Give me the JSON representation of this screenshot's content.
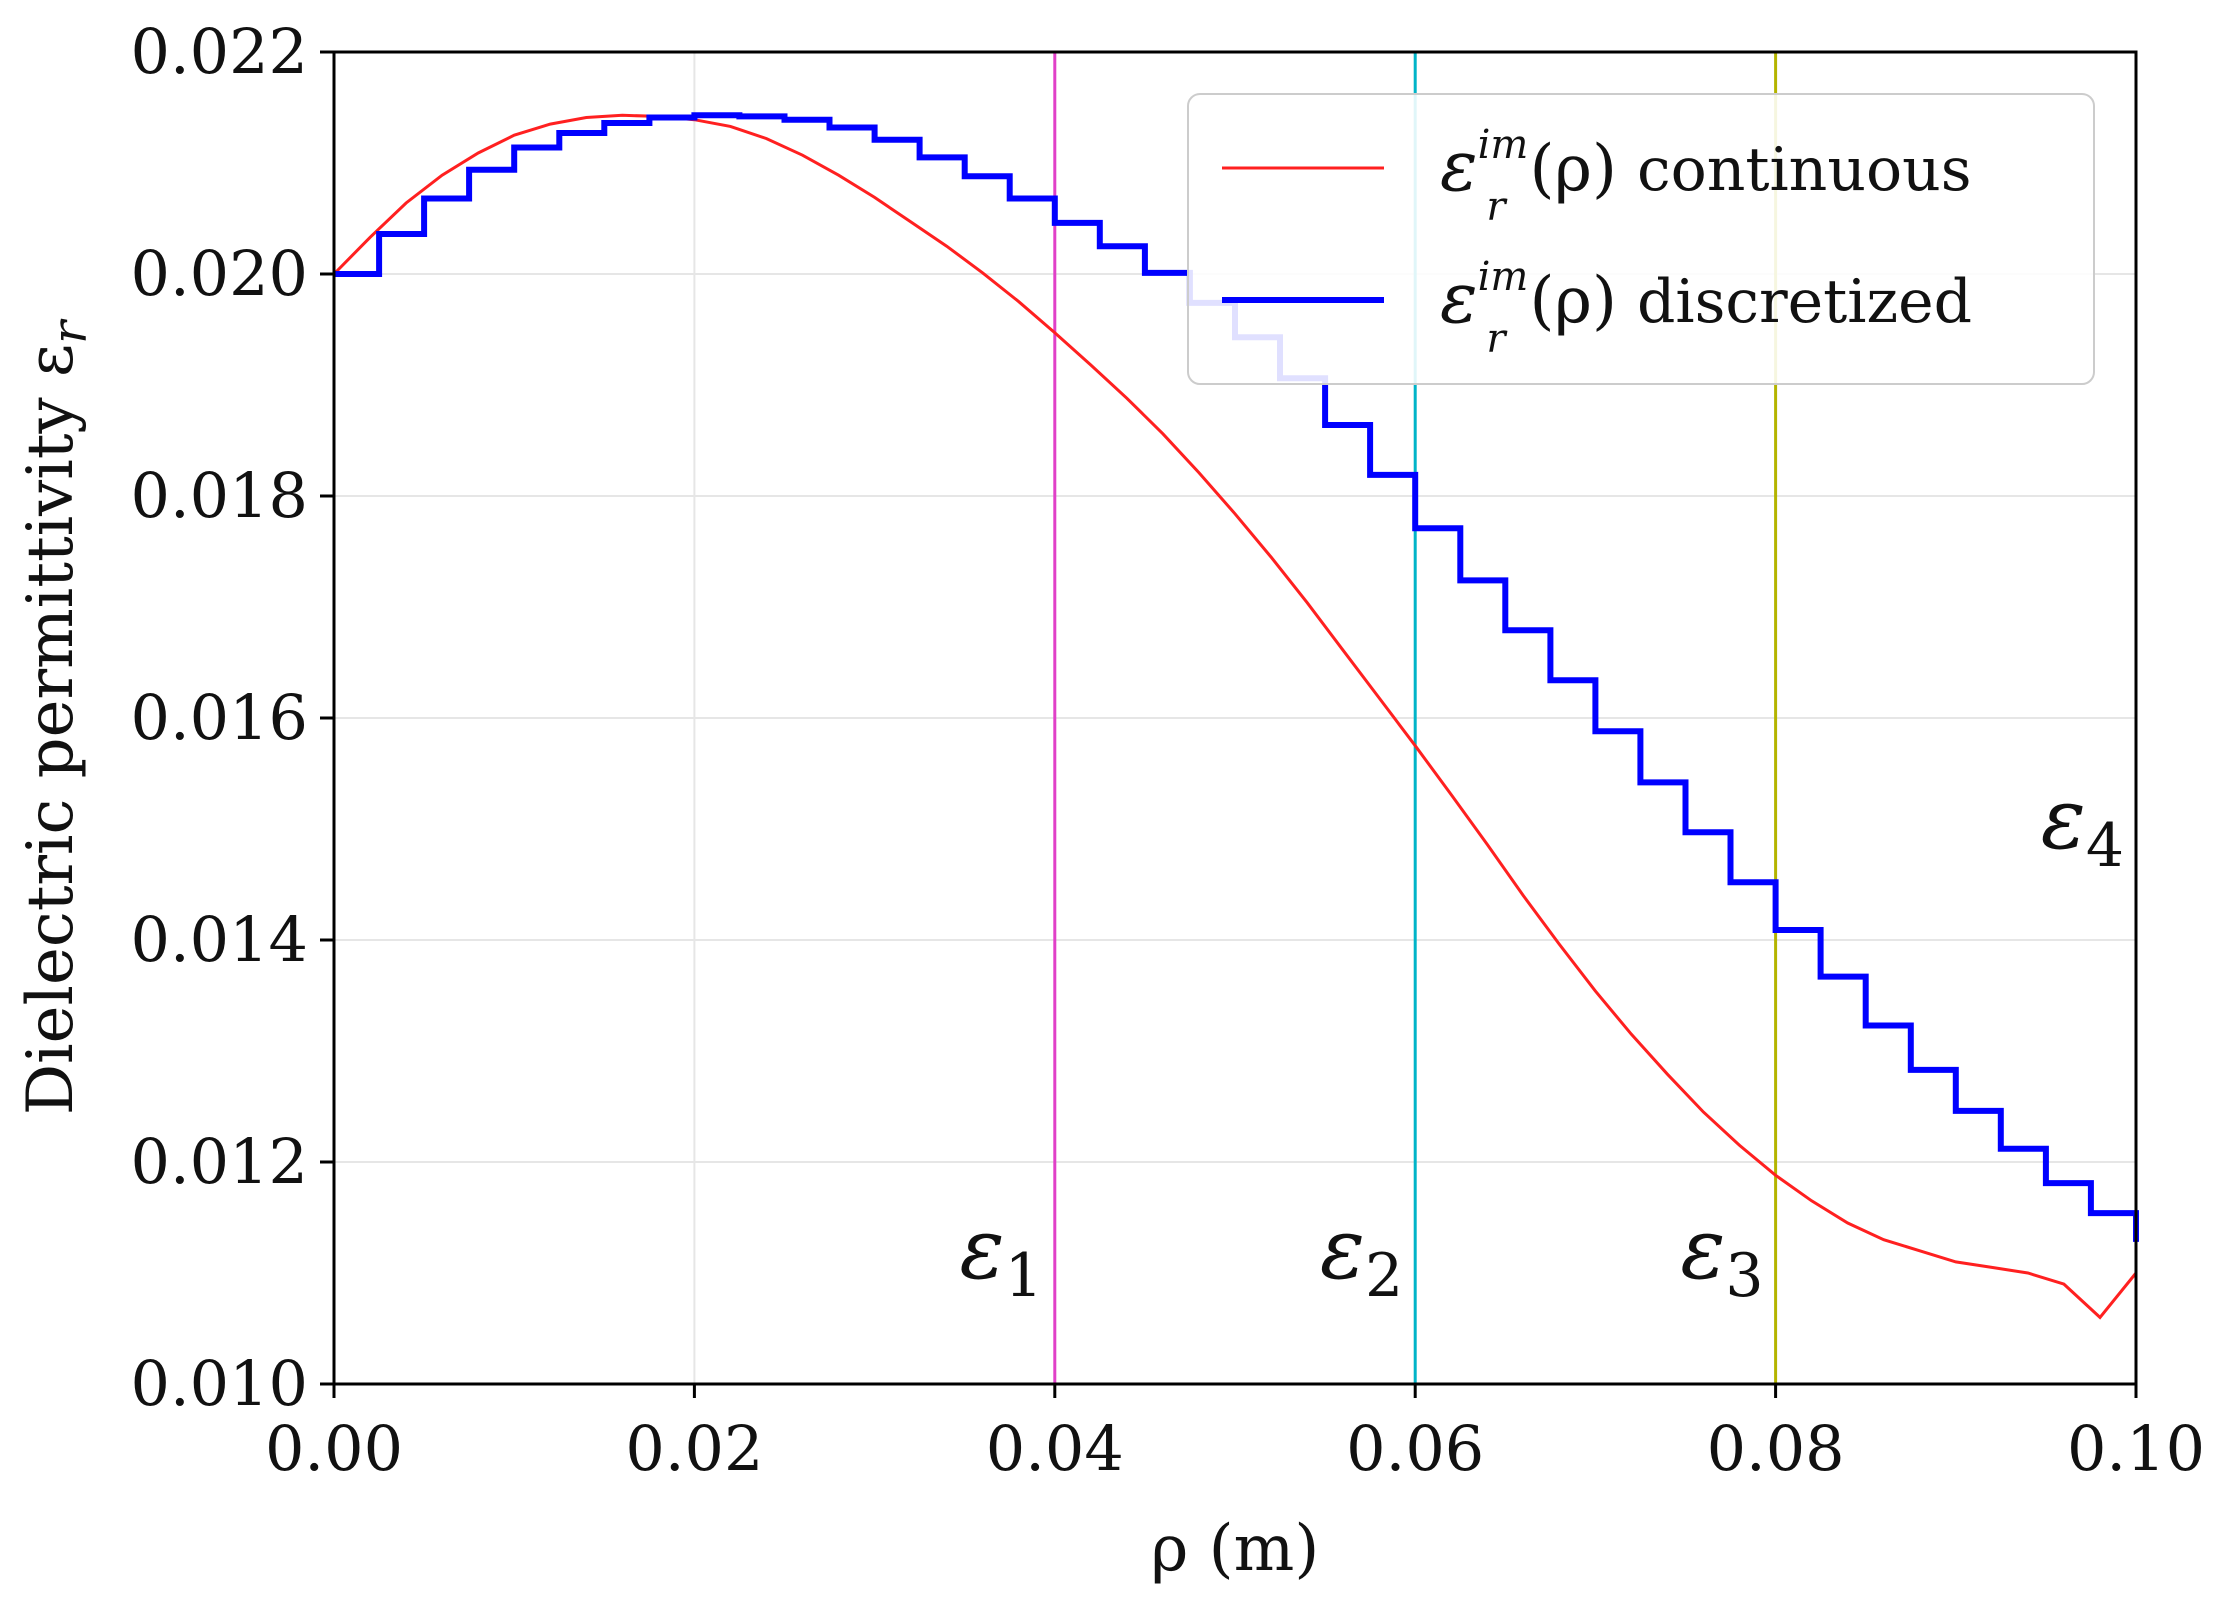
{
  "chart_data": {
    "type": "line",
    "title": "",
    "xlabel": "ρ (m)",
    "ylabel": "Dielectric permittivity ε",
    "ylabel_sub": "r",
    "xlim": [
      0.0,
      0.1
    ],
    "ylim": [
      0.01,
      0.022
    ],
    "xticks": [
      0.0,
      0.02,
      0.04,
      0.06,
      0.08,
      0.1
    ],
    "xtick_labels": [
      "0.00",
      "0.02",
      "0.04",
      "0.06",
      "0.08",
      "0.10"
    ],
    "yticks": [
      0.01,
      0.012,
      0.014,
      0.016,
      0.018,
      0.02,
      0.022
    ],
    "ytick_labels": [
      "0.010",
      "0.012",
      "0.014",
      "0.016",
      "0.018",
      "0.020",
      "0.022"
    ],
    "grid": true,
    "legend": {
      "placement": "top-right",
      "entries": [
        {
          "base": "ε",
          "sup": "im",
          "sub": "r",
          "arg": "(ρ)",
          "text": "continuous",
          "color": "#ff2020"
        },
        {
          "base": "ε",
          "sup": "im",
          "sub": "r",
          "arg": "(ρ)",
          "text": "discretized",
          "color": "#0000ff"
        }
      ]
    },
    "series": [
      {
        "name": "continuous",
        "color": "#ff2020",
        "x": [
          0.0,
          0.002,
          0.004,
          0.006,
          0.008,
          0.01,
          0.012,
          0.014,
          0.016,
          0.018,
          0.02,
          0.022,
          0.024,
          0.026,
          0.028,
          0.03,
          0.032,
          0.034,
          0.036,
          0.038,
          0.04,
          0.042,
          0.044,
          0.046,
          0.048,
          0.05,
          0.052,
          0.054,
          0.056,
          0.058,
          0.06,
          0.062,
          0.064,
          0.066,
          0.068,
          0.07,
          0.072,
          0.074,
          0.076,
          0.078,
          0.08,
          0.082,
          0.084,
          0.086,
          0.088,
          0.09,
          0.092,
          0.094,
          0.096,
          0.098,
          0.1
        ],
        "values": [
          0.02,
          0.02033,
          0.02064,
          0.02089,
          0.02109,
          0.02125,
          0.02135,
          0.02141,
          0.02143,
          0.02142,
          0.02139,
          0.02133,
          0.02122,
          0.02107,
          0.02089,
          0.02069,
          0.02047,
          0.02025,
          0.02001,
          0.01975,
          0.01947,
          0.01918,
          0.01888,
          0.01856,
          0.01821,
          0.01784,
          0.01745,
          0.01704,
          0.01661,
          0.01618,
          0.01575,
          0.01531,
          0.01486,
          0.0144,
          0.01396,
          0.01354,
          0.01315,
          0.01279,
          0.01245,
          0.01215,
          0.01188,
          0.01165,
          0.01145,
          0.0113,
          0.0112,
          0.0111,
          0.01105,
          0.011,
          0.0109,
          0.0106,
          0.011
        ]
      },
      {
        "name": "discretized",
        "color": "#0000ff",
        "step_width": 0.0025,
        "values": [
          0.02,
          0.02036,
          0.02068,
          0.02094,
          0.02114,
          0.02127,
          0.02136,
          0.02141,
          0.02143,
          0.02142,
          0.02139,
          0.02132,
          0.02121,
          0.02105,
          0.02088,
          0.02068,
          0.02046,
          0.02025,
          0.02001,
          0.01974,
          0.01943,
          0.01906,
          0.01864,
          0.01819,
          0.01771,
          0.01724,
          0.01679,
          0.01634,
          0.01588,
          0.01542,
          0.01497,
          0.01452,
          0.01409,
          0.01367,
          0.01323,
          0.01283,
          0.01246,
          0.01212,
          0.01181,
          0.01154,
          0.01128
        ]
      }
    ],
    "vlines": [
      {
        "x": 0.04,
        "color": "#e040c8",
        "label": "ε",
        "label_sub": "1"
      },
      {
        "x": 0.06,
        "color": "#00b4c8",
        "label": "ε",
        "label_sub": "2"
      },
      {
        "x": 0.08,
        "color": "#b4b400",
        "label": "ε",
        "label_sub": "3"
      },
      {
        "x": 0.1,
        "color": "#006400",
        "label": "ε",
        "label_sub": "4"
      }
    ]
  }
}
